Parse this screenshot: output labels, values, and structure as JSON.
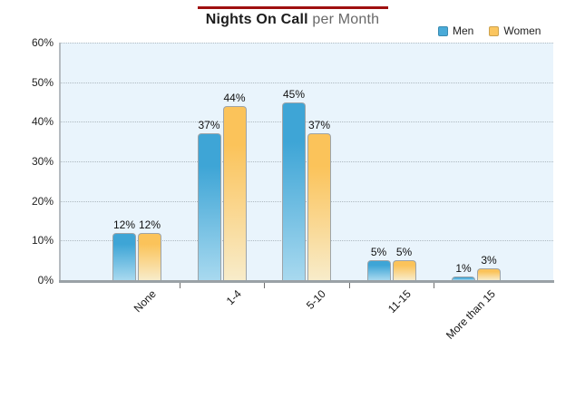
{
  "header": {
    "title_bold": "Nights On Call",
    "title_regular": " per Month",
    "rule_color": "#9f1010"
  },
  "legend": {
    "position": "top-right",
    "items": [
      {
        "label": "Men",
        "color": "#49aad8"
      },
      {
        "label": "Women",
        "color": "#fbc660"
      }
    ]
  },
  "chart_data": {
    "type": "bar",
    "title": "Nights On Call per Month",
    "categories": [
      "None",
      "1-4",
      "5-10",
      "11-15",
      "More than 15"
    ],
    "series": [
      {
        "name": "Men",
        "values": [
          12,
          37,
          45,
          5,
          1
        ],
        "color_top": "#3ea5d6",
        "color_bottom": "#a8d9ef"
      },
      {
        "name": "Women",
        "values": [
          12,
          44,
          37,
          5,
          3
        ],
        "color_top": "#fbc35a",
        "color_bottom": "#f8ecca"
      }
    ],
    "value_suffix": "%",
    "xlabel": "",
    "ylabel": "",
    "ylim": [
      0,
      60
    ],
    "y_tick_step": 10,
    "y_tick_labels": [
      "0%",
      "10%",
      "20%",
      "30%",
      "40%",
      "50%",
      "60%"
    ],
    "grid": "horizontal-dotted",
    "plot_background": "#e9f4fc",
    "gridline_color": "#aeb9c0",
    "axis_color": "#9aa1a6",
    "legend_position": "top-right"
  }
}
